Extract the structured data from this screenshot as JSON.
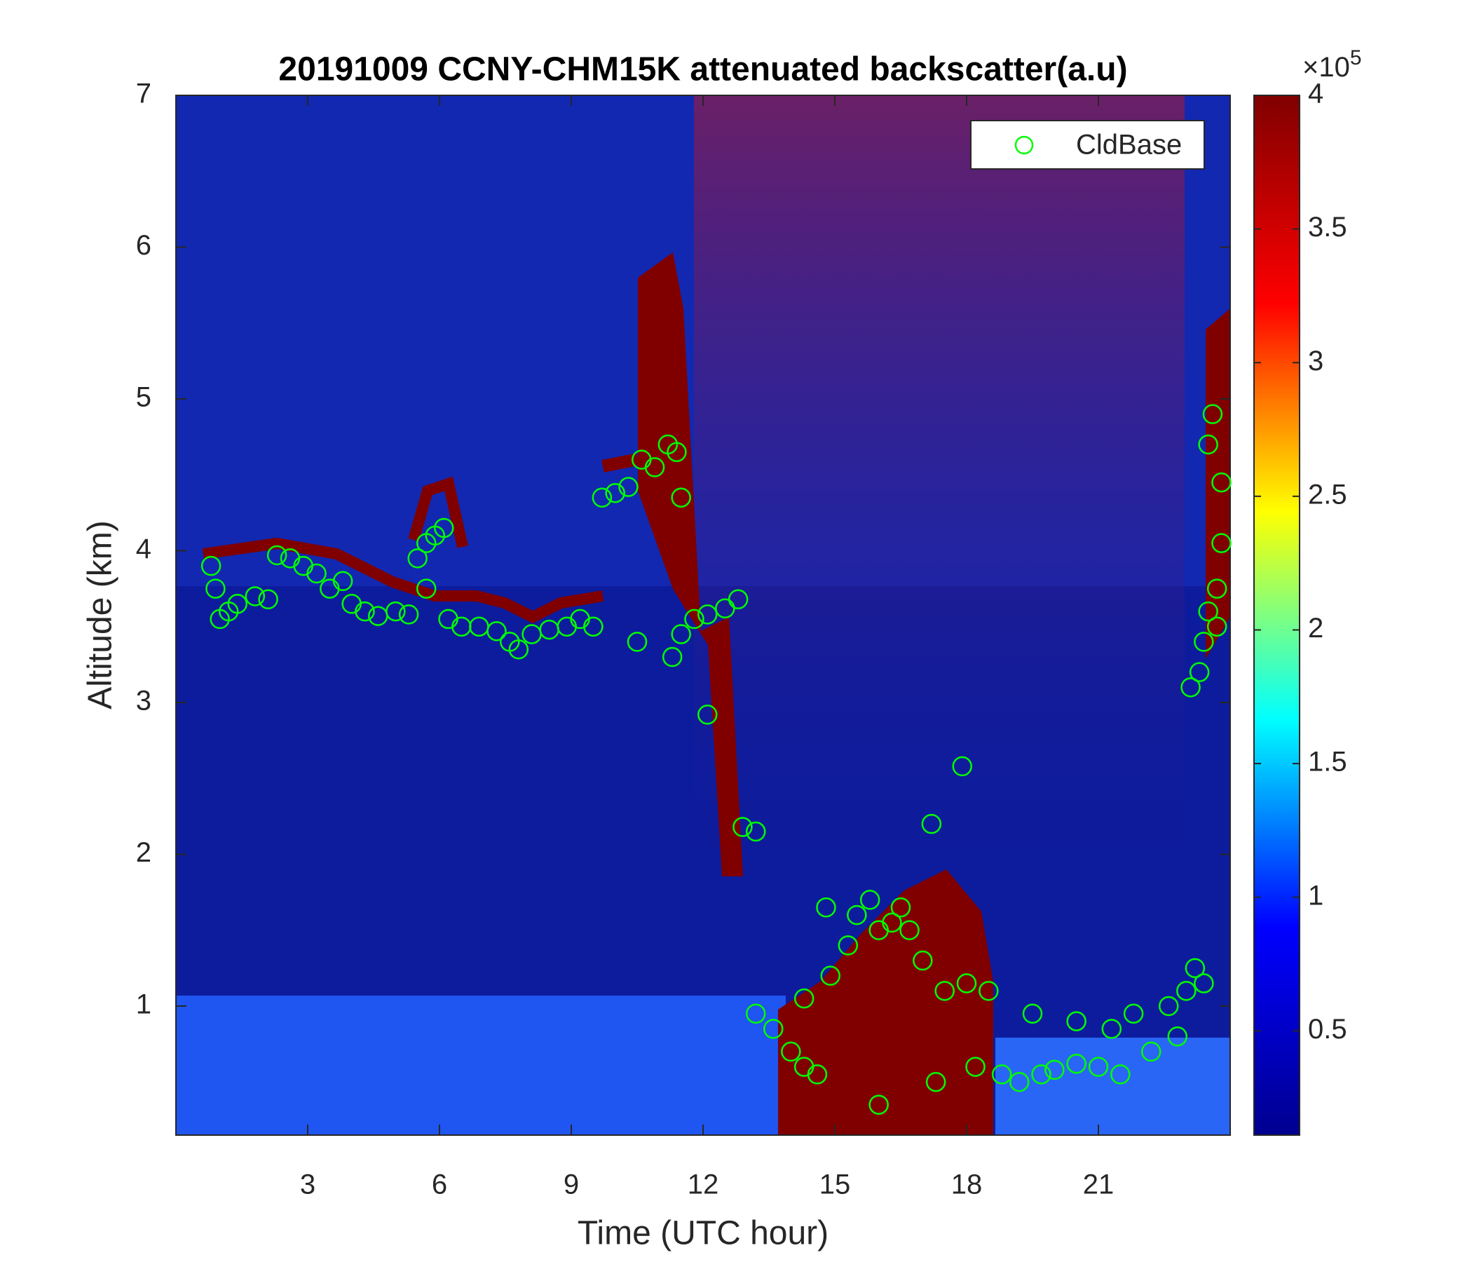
{
  "chart_data": {
    "type": "scatter",
    "title": "20191009 CCNY-CHM15K attenuated backscatter(a.u)",
    "x_label": "Time (UTC hour)",
    "y_label": "Altitude (km)",
    "xlim": [
      0,
      24
    ],
    "xticks": [
      3,
      6,
      9,
      12,
      15,
      18,
      21
    ],
    "ylim": [
      0.15,
      7
    ],
    "yticks": [
      1,
      2,
      3,
      4,
      5,
      6,
      7
    ],
    "legend": "upper right",
    "series": [
      {
        "name": "CldBase",
        "color": "#00ff00",
        "x": [
          0.8,
          0.9,
          1,
          1.2,
          1.4,
          1.8,
          2.1,
          2.3,
          2.6,
          2.9,
          3.2,
          3.5,
          3.8,
          4,
          4.3,
          4.6,
          5,
          5.3,
          5.5,
          5.7,
          5.9,
          6.1,
          5.7,
          6.2,
          6.5,
          6.9,
          7.3,
          7.6,
          7.8,
          8.1,
          8.5,
          8.9,
          9.2,
          9.5,
          9.7,
          10,
          10.3,
          10.5,
          10.6,
          10.9,
          11.2,
          11.4,
          11.5,
          11.3,
          11.5,
          11.8,
          12.1,
          12.5,
          12.8,
          12.1,
          12.9,
          13.2,
          13.2,
          13.6,
          14,
          14.3,
          14.6,
          14.3,
          14.8,
          14.9,
          15.3,
          15.5,
          15.8,
          16,
          16,
          16.3,
          16.5,
          16.7,
          17,
          17.2,
          17.3,
          17.5,
          17.9,
          18,
          18.2,
          18.5,
          18.8,
          19.2,
          19.5,
          19.7,
          20,
          20.5,
          20.5,
          21,
          21.3,
          21.5,
          21.8,
          22.2,
          22.6,
          22.8,
          23,
          23.2,
          23.4,
          23.1,
          23.3,
          23.4,
          23.5,
          23.6,
          23.5,
          23.8,
          23.8,
          23.7,
          23.7
        ],
        "values": [
          3.9,
          3.75,
          3.55,
          3.6,
          3.65,
          3.7,
          3.68,
          3.97,
          3.95,
          3.9,
          3.85,
          3.75,
          3.8,
          3.65,
          3.6,
          3.57,
          3.6,
          3.58,
          3.95,
          4.05,
          4.1,
          4.15,
          3.75,
          3.55,
          3.5,
          3.5,
          3.47,
          3.4,
          3.35,
          3.45,
          3.48,
          3.5,
          3.55,
          3.5,
          4.35,
          4.38,
          4.42,
          3.4,
          4.6,
          4.55,
          4.7,
          4.65,
          4.35,
          3.3,
          3.45,
          3.55,
          3.58,
          3.62,
          3.68,
          2.92,
          2.18,
          2.15,
          0.95,
          0.85,
          0.7,
          0.6,
          0.55,
          1.05,
          1.65,
          1.2,
          1.4,
          1.6,
          1.7,
          0.35,
          1.5,
          1.55,
          1.65,
          1.5,
          1.3,
          2.2,
          0.5,
          1.1,
          2.58,
          1.15,
          0.6,
          1.1,
          0.55,
          0.5,
          0.95,
          0.55,
          0.58,
          0.62,
          0.9,
          0.6,
          0.85,
          0.55,
          0.95,
          0.7,
          1.0,
          0.8,
          1.1,
          1.25,
          1.15,
          3.1,
          3.2,
          3.4,
          3.6,
          4.9,
          4.7,
          4.45,
          4.05,
          3.75,
          3.5
        ]
      }
    ],
    "colorbar": {
      "lim": [
        0.11,
        4
      ],
      "ticks": [
        0.5,
        1,
        1.5,
        2,
        2.5,
        3,
        3.5,
        4
      ],
      "multiplier": "×10",
      "exponent": "5",
      "colormap": [
        "#00008f",
        "#0000ff",
        "#00ffff",
        "#ffff00",
        "#ff0000",
        "#800000"
      ]
    }
  }
}
